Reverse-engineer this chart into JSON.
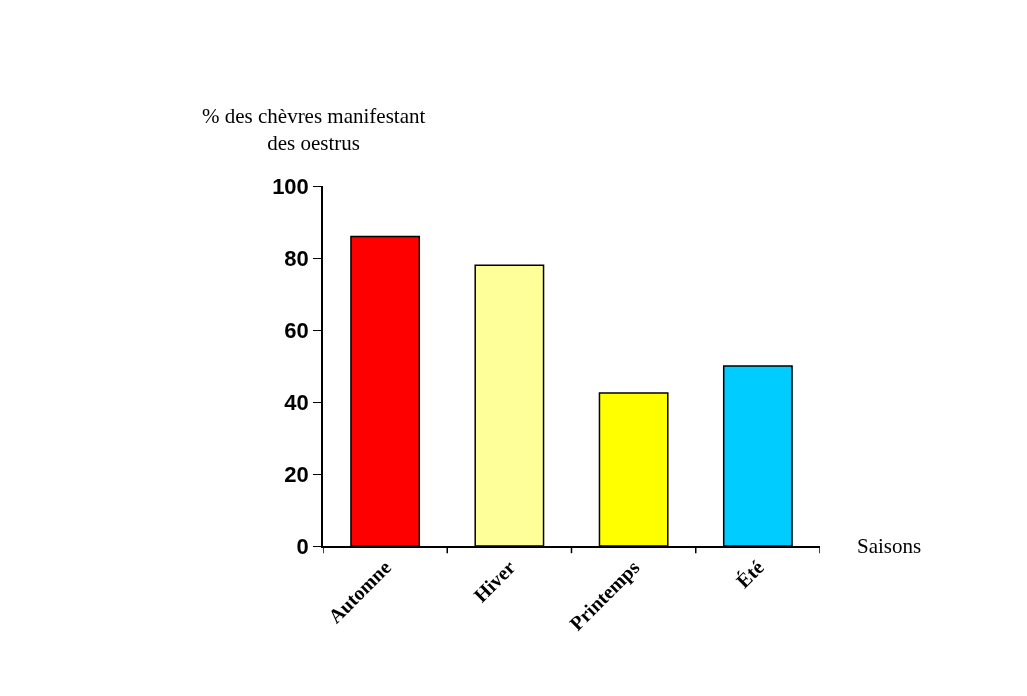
{
  "chart_data": {
    "type": "bar",
    "ylabel": "% des chèvres manifestant\ndes oestrus",
    "xlabel": "Saisons",
    "categories": [
      "Automne",
      "Hiver",
      "Printemps",
      "Été"
    ],
    "values": [
      86,
      78,
      42.5,
      50
    ],
    "colors": [
      "#ff0000",
      "#ffff99",
      "#ffff00",
      "#00ccff"
    ],
    "ylim": [
      0,
      100
    ],
    "yticks": [
      0,
      20,
      40,
      60,
      80,
      100
    ],
    "grid": false,
    "legend": false
  }
}
